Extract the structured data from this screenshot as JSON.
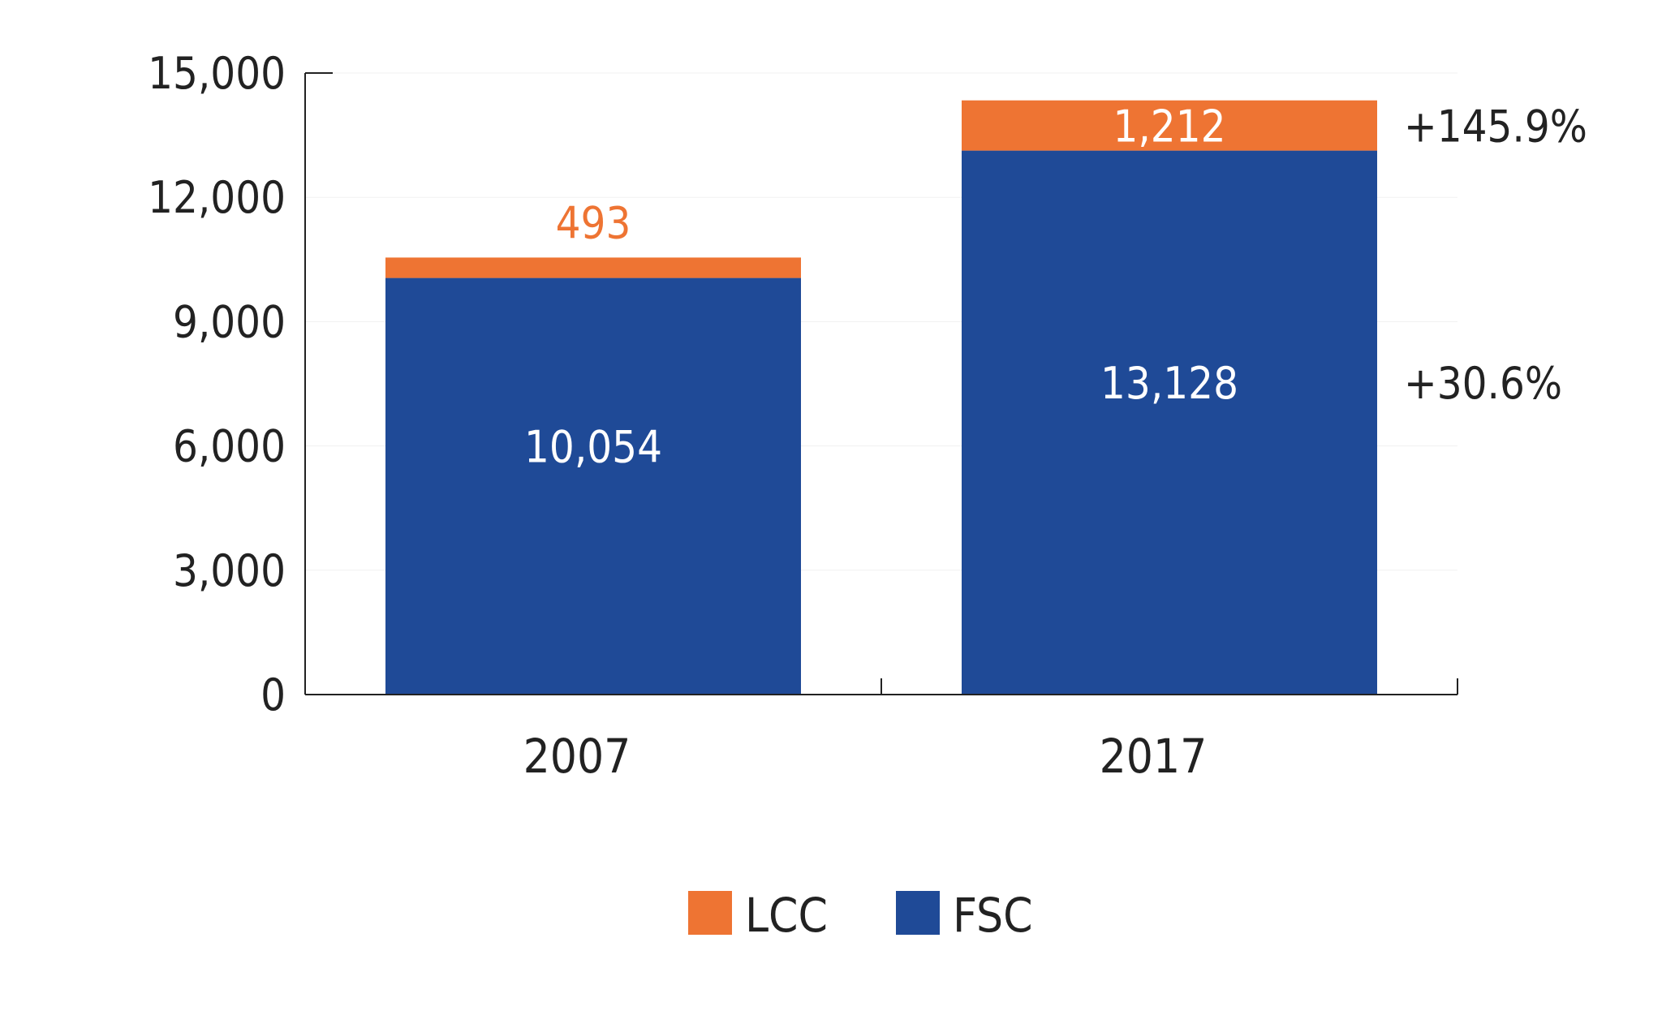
{
  "chart_data": {
    "type": "bar",
    "stacked": true,
    "categories": [
      "2007",
      "2017"
    ],
    "series": [
      {
        "name": "FSC",
        "color": "#1f4a97",
        "values": [
          10054,
          13128
        ],
        "labels": [
          "10,054",
          "13,128"
        ]
      },
      {
        "name": "LCC",
        "color": "#ee7433",
        "values": [
          493,
          1212
        ],
        "labels": [
          "493",
          "1,212"
        ]
      }
    ],
    "ylim": [
      0,
      15000
    ],
    "yticks": [
      0,
      3000,
      6000,
      9000,
      12000,
      15000
    ],
    "ytick_labels": [
      "0",
      "3,000",
      "6,000",
      "9,000",
      "12,000",
      "15,000"
    ],
    "growth_annotations": [
      {
        "series": "LCC",
        "text": "+145.9%"
      },
      {
        "series": "FSC",
        "text": "+30.6%"
      }
    ],
    "legend": {
      "placement": "bottom",
      "items": [
        {
          "name": "LCC",
          "color": "#ee7433"
        },
        {
          "name": "FSC",
          "color": "#1f4a97"
        }
      ]
    },
    "title": "",
    "xlabel": "",
    "ylabel": "",
    "grid": true
  }
}
